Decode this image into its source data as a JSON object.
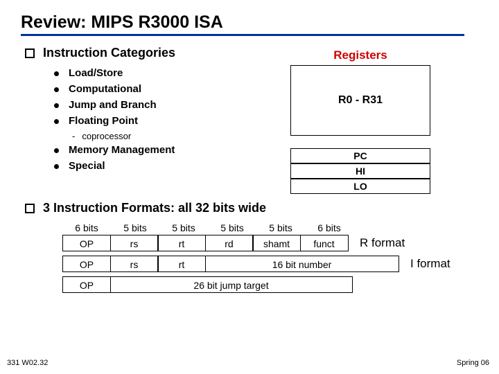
{
  "title": "Review:  MIPS R3000 ISA",
  "section1": {
    "heading": "Instruction Categories",
    "items": [
      "Load/Store",
      "Computational",
      "Jump and Branch",
      "Floating Point"
    ],
    "subitem": "coprocessor",
    "items2": [
      "Memory Management",
      "Special"
    ]
  },
  "registers": {
    "title": "Registers",
    "main": "R0 - R31",
    "pc": "PC",
    "hi": "HI",
    "lo": "LO"
  },
  "section2": {
    "heading": "3 Instruction Formats:  all 32 bits wide",
    "widths": [
      "6 bits",
      "5 bits",
      "5 bits",
      "5 bits",
      "5 bits",
      "6 bits"
    ],
    "r_row": [
      "OP",
      "rs",
      "rt",
      "rd",
      "shamt",
      "funct"
    ],
    "r_label": "R format",
    "i_row": {
      "op": "OP",
      "rs": "rs",
      "rt": "rt",
      "imm": "16 bit number"
    },
    "i_label": "I  format",
    "j_row": {
      "op": "OP",
      "target": "26 bit jump target"
    }
  },
  "footer": {
    "left": "331 W02.32",
    "right": "Spring 06"
  },
  "colors": {
    "underline": "#003399",
    "reg_title": "#cc0000"
  }
}
